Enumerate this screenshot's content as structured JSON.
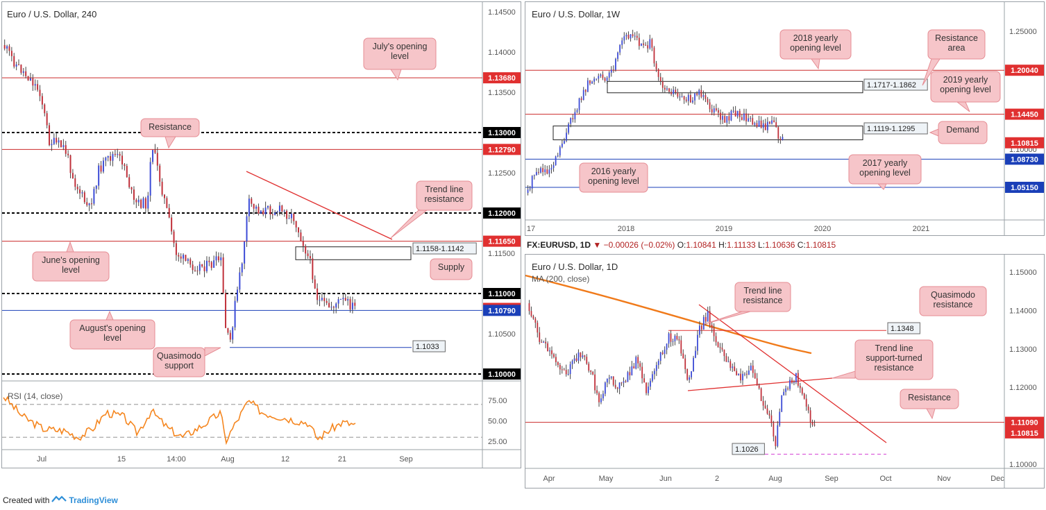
{
  "footer": {
    "created_with": "Created with",
    "brand": "TradingView"
  },
  "chart_data": [
    {
      "id": "h4",
      "type": "candlestick",
      "title": "Euro / U.S. Dollar, 240",
      "x_ticks": [
        "Jul",
        "15",
        "14:00",
        "Aug",
        "12",
        "21",
        "Sep"
      ],
      "y_ticks": [
        "1.14500",
        "1.14000",
        "1.13500",
        "1.12500",
        "1.11500",
        "1.10500"
      ],
      "ylim": [
        1.097,
        1.147
      ],
      "levels": [
        {
          "value": 1.1368,
          "label": "1.13680",
          "color": "#cc2a2a",
          "style": "solid",
          "tag_color": "#e03030"
        },
        {
          "value": 1.13,
          "label": "1.13000",
          "color": "#000000",
          "style": "dashed",
          "tag_color": "#000000"
        },
        {
          "value": 1.1279,
          "label": "1.12790",
          "color": "#cc2a2a",
          "style": "solid",
          "tag_color": "#e03030"
        },
        {
          "value": 1.12,
          "label": "1.12000",
          "color": "#000000",
          "style": "dashed",
          "tag_color": "#000000"
        },
        {
          "value": 1.1165,
          "label": "1.11650",
          "color": "#cc2a2a",
          "style": "solid",
          "tag_color": "#e03030"
        },
        {
          "value": 1.11,
          "label": "1.11000",
          "color": "#000000",
          "style": "dashed",
          "tag_color": "#000000"
        },
        {
          "value": 1.10815,
          "label": "1.10815",
          "color": null,
          "style": "none",
          "tag_color": "#e03030"
        },
        {
          "value": 1.1079,
          "label": "1.10790",
          "color": "#1a3fb8",
          "style": "solid",
          "tag_color": "#1a3fb8"
        },
        {
          "value": 1.1,
          "label": "1.10000",
          "color": "#000000",
          "style": "dashed",
          "tag_color": "#000000"
        }
      ],
      "annotations": [
        {
          "text": "July's opening level"
        },
        {
          "text": "Resistance"
        },
        {
          "text": "Trend line resistance"
        },
        {
          "text": "June's opening level"
        },
        {
          "text": "Supply"
        },
        {
          "text": "August's opening level"
        },
        {
          "text": "Quasimodo support"
        }
      ],
      "zone_labels": [
        "1.1158-1.1142",
        "1.1033"
      ],
      "rsi": {
        "title": "RSI (14, close)",
        "ticks": [
          "75.00",
          "50.00",
          "25.00"
        ],
        "ylim": [
          15,
          90
        ],
        "bands": [
          70,
          30
        ],
        "color": "#f5861f"
      }
    },
    {
      "id": "weekly",
      "type": "candlestick",
      "title": "Euro / U.S. Dollar, 1W",
      "x_ticks": [
        "17",
        "2018",
        "2019",
        "2020",
        "2021"
      ],
      "y_ticks": [
        "1.25000",
        "1.10000"
      ],
      "ylim": [
        1.01,
        1.26
      ],
      "levels": [
        {
          "value": 1.2004,
          "label": "1.20040",
          "color": "#cc2a2a",
          "tag_color": "#e03030"
        },
        {
          "value": 1.1445,
          "label": "1.14450",
          "color": "#cc2a2a",
          "tag_color": "#e03030"
        },
        {
          "value": 1.10815,
          "label": "1.10815",
          "color": null,
          "tag_color": "#e03030"
        },
        {
          "value": 1.0873,
          "label": "1.08730",
          "color": "#1a3fb8",
          "tag_color": "#1a3fb8"
        },
        {
          "value": 1.0515,
          "label": "1.05150",
          "color": "#1a3fb8",
          "tag_color": "#1a3fb8"
        }
      ],
      "zone_labels": [
        "1.1717-1.1862",
        "1.1119-1.1295"
      ],
      "annotations": [
        {
          "text": "2018 yearly opening level"
        },
        {
          "text": "Resistance area"
        },
        {
          "text": "2019 yearly opening level"
        },
        {
          "text": "Demand"
        },
        {
          "text": "2016 yearly opening level"
        },
        {
          "text": "2017 yearly opening level"
        }
      ]
    },
    {
      "id": "daily",
      "type": "candlestick",
      "title": "Euro / U.S. Dollar, 1D",
      "ma_label": "MA (200, close)",
      "ohlc_line": {
        "symbol": "FX:EURUSD, 1D",
        "change": "−0.00026 (−0.02%)",
        "o_label": "O:",
        "o": "1.10841",
        "h_label": "H:",
        "h": "1.11133",
        "l_label": "L:",
        "l": "1.10636",
        "c_label": "C:",
        "c": "1.10815"
      },
      "x_ticks": [
        "Apr",
        "May",
        "Jun",
        "2",
        "Aug",
        "Sep",
        "Oct",
        "Nov",
        "Dec"
      ],
      "y_ticks": [
        "1.15000",
        "1.14000",
        "1.13000",
        "1.12000",
        "1.11000",
        "1.10000"
      ],
      "ylim": [
        1.096,
        1.155
      ],
      "levels": [
        {
          "value": 1.1109,
          "label": "1.11090",
          "color": "#cc2a2a",
          "tag_color": "#e03030"
        },
        {
          "value": 1.10815,
          "label": "1.10815",
          "color": null,
          "tag_color": "#e03030"
        }
      ],
      "zone_labels": [
        "1.1348",
        "1.1026"
      ],
      "annotations": [
        {
          "text": "Trend line resistance"
        },
        {
          "text": "Quasimodo resistance"
        },
        {
          "text": "Trend line support-turned resistance"
        },
        {
          "text": "Resistance"
        }
      ]
    }
  ]
}
